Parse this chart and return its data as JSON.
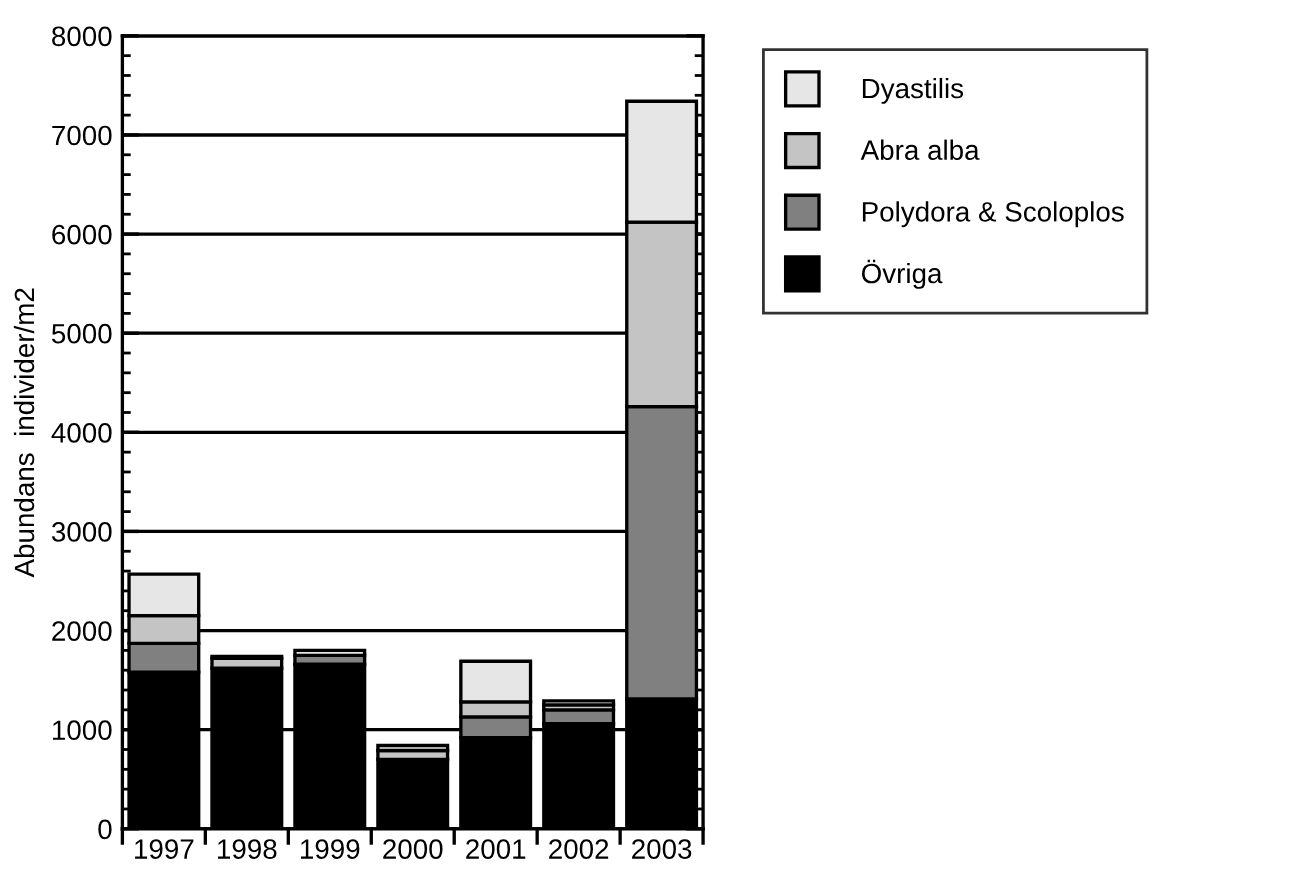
{
  "chart_data": {
    "type": "bar",
    "stacked": true,
    "ylabel": "Abundans  individer/m2",
    "categories": [
      "1997",
      "1998",
      "1999",
      "2000",
      "2001",
      "2002",
      "2003"
    ],
    "series": [
      {
        "name": "Övriga",
        "color": "#000000",
        "values": [
          1580,
          1620,
          1660,
          700,
          920,
          1060,
          1310
        ]
      },
      {
        "name": "Polydora & Scoloplos",
        "color": "#808080",
        "values": [
          290,
          0,
          90,
          0,
          210,
          140,
          2950
        ]
      },
      {
        "name": "Abra alba",
        "color": "#c4c4c4",
        "values": [
          280,
          100,
          null,
          90,
          150,
          50,
          1860
        ]
      },
      {
        "name": "Dyastilis",
        "color": "#e6e6e6",
        "values": [
          420,
          20,
          50,
          50,
          410,
          40,
          1220
        ]
      }
    ],
    "ylim": [
      0,
      8000
    ],
    "yticks": [
      0,
      1000,
      2000,
      3000,
      4000,
      5000,
      6000,
      7000,
      8000
    ],
    "grid": "y",
    "legend": "top right"
  }
}
